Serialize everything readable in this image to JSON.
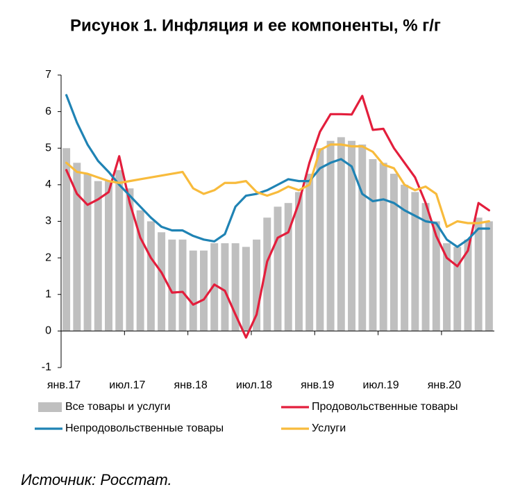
{
  "chart_data": {
    "type": "bar_line",
    "title": "Рисунок 1. Инфляция и ее компоненты, % г/г",
    "source": "Источник: Росстат.",
    "categories": [
      "янв.17",
      null,
      null,
      null,
      null,
      null,
      "июл.17",
      null,
      null,
      null,
      null,
      null,
      "янв.18",
      null,
      null,
      null,
      null,
      null,
      "июл.18",
      null,
      null,
      null,
      null,
      null,
      "янв.19",
      null,
      null,
      null,
      null,
      null,
      "июл.19",
      null,
      null,
      null,
      null,
      null,
      "янв.20",
      null,
      null,
      null,
      null
    ],
    "ylim": [
      -1,
      7
    ],
    "yticks": [
      -1,
      0,
      1,
      2,
      3,
      4,
      5,
      6,
      7
    ],
    "series": [
      {
        "name": "Все товары и услуги",
        "type": "bar",
        "color": "#bfbfbf",
        "values": [
          5.0,
          4.6,
          4.3,
          4.1,
          4.1,
          4.4,
          3.9,
          3.3,
          3.0,
          2.7,
          2.5,
          2.5,
          2.2,
          2.2,
          2.4,
          2.4,
          2.4,
          2.3,
          2.5,
          3.1,
          3.4,
          3.5,
          3.8,
          4.3,
          5.0,
          5.2,
          5.3,
          5.2,
          5.1,
          4.7,
          4.6,
          4.3,
          4.0,
          3.8,
          3.5,
          3.0,
          2.4,
          2.3,
          2.5,
          3.1,
          3.0
        ]
      },
      {
        "name": "Продовольственные товары",
        "type": "line",
        "color": "#e31e3c",
        "values": [
          4.4,
          3.75,
          3.45,
          3.6,
          3.8,
          4.78,
          3.5,
          2.55,
          2.0,
          1.6,
          1.05,
          1.07,
          0.72,
          0.86,
          1.27,
          1.1,
          0.45,
          -0.18,
          0.45,
          1.9,
          2.55,
          2.7,
          3.5,
          4.6,
          5.45,
          5.93,
          5.93,
          5.92,
          6.43,
          5.5,
          5.53,
          5.0,
          4.6,
          4.2,
          3.5,
          2.6,
          2.0,
          1.77,
          2.2,
          3.5,
          3.3
        ]
      },
      {
        "name": "Непродовольственные товары",
        "type": "line",
        "color": "#1f83b4",
        "values": [
          6.45,
          5.7,
          5.1,
          4.65,
          4.35,
          4.0,
          3.7,
          3.4,
          3.1,
          2.85,
          2.75,
          2.75,
          2.6,
          2.5,
          2.45,
          2.65,
          3.4,
          3.7,
          3.75,
          3.85,
          4.0,
          4.15,
          4.1,
          4.1,
          4.45,
          4.6,
          4.7,
          4.5,
          3.75,
          3.55,
          3.6,
          3.5,
          3.3,
          3.15,
          3.0,
          2.95,
          2.5,
          2.3,
          2.5,
          2.8,
          2.8
        ]
      },
      {
        "name": "Услуги",
        "type": "line",
        "color": "#f8bb3c",
        "values": [
          4.6,
          4.35,
          4.3,
          4.2,
          4.1,
          4.05,
          4.1,
          4.15,
          4.2,
          4.25,
          4.3,
          4.35,
          3.9,
          3.75,
          3.85,
          4.05,
          4.05,
          4.1,
          3.8,
          3.7,
          3.8,
          3.95,
          3.85,
          4.0,
          4.95,
          5.1,
          5.1,
          5.05,
          5.05,
          4.9,
          4.55,
          4.45,
          4.0,
          3.85,
          3.95,
          3.75,
          2.85,
          3.0,
          2.95,
          2.95,
          3.0
        ]
      }
    ]
  }
}
